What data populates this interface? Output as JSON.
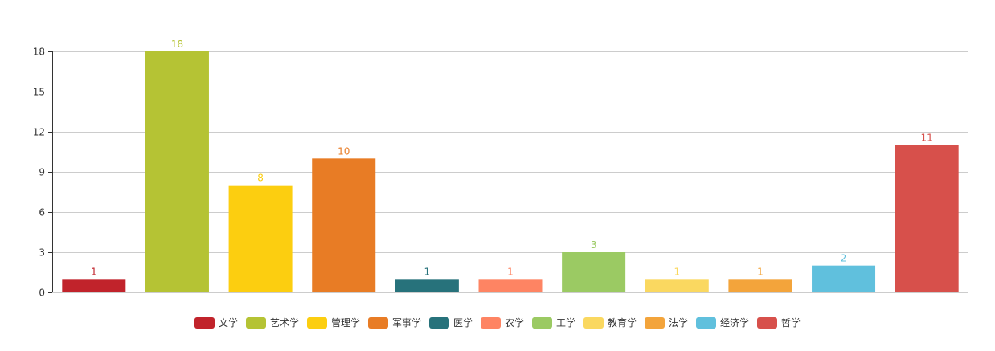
{
  "chart_data": {
    "type": "bar",
    "title": "",
    "xlabel": "",
    "ylabel": "",
    "ylim": [
      0,
      18
    ],
    "yticks": [
      0,
      3,
      6,
      9,
      12,
      15,
      18
    ],
    "grid": true,
    "legend_position": "bottom",
    "data_labels": true,
    "categories": [
      "文学",
      "艺术学",
      "管理学",
      "军事学",
      "医学",
      "农学",
      "工学",
      "教育学",
      "法学",
      "经济学",
      "哲学"
    ],
    "values": [
      1,
      18,
      8,
      10,
      1,
      1,
      3,
      1,
      1,
      2,
      11
    ],
    "colors": [
      "#c1232b",
      "#b5c334",
      "#fcce10",
      "#e87c25",
      "#27727b",
      "#fe8463",
      "#9bca63",
      "#fad860",
      "#f3a43b",
      "#60c0dd",
      "#d7504b"
    ]
  }
}
